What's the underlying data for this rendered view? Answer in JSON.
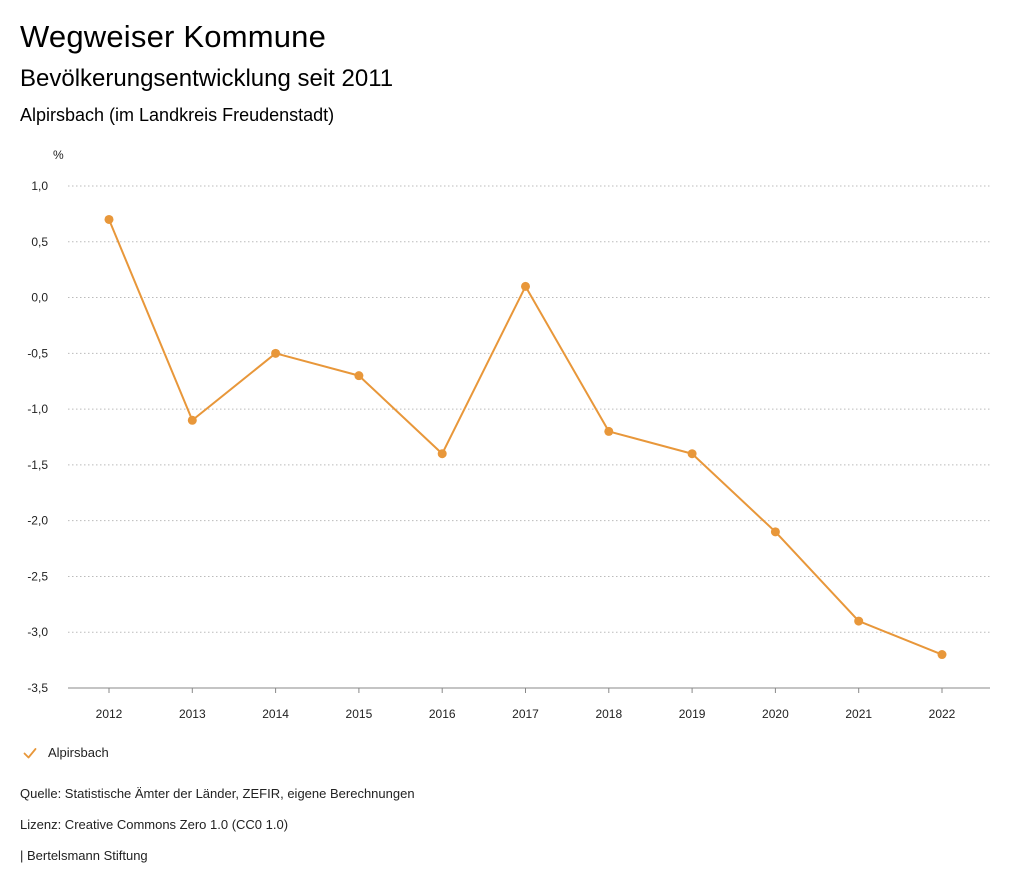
{
  "header": {
    "title": "Wegweiser Kommune",
    "subtitle": "Bevölkerungsentwicklung seit 2011",
    "location": "Alpirsbach (im Landkreis Freudenstadt)"
  },
  "chart_data": {
    "type": "line",
    "ylabel": "%",
    "xlabel": "",
    "x": [
      "2012",
      "2013",
      "2014",
      "2015",
      "2016",
      "2017",
      "2018",
      "2019",
      "2020",
      "2021",
      "2022"
    ],
    "series": [
      {
        "name": "Alpirsbach",
        "values": [
          0.7,
          -1.1,
          -0.5,
          -0.7,
          -1.4,
          0.1,
          -1.2,
          -1.4,
          -2.1,
          -2.9,
          -3.2
        ]
      }
    ],
    "ylim": [
      -3.5,
      1.0
    ],
    "yticks": [
      1.0,
      0.5,
      0.0,
      -0.5,
      -1.0,
      -1.5,
      -2.0,
      -2.5,
      -3.0,
      -3.5
    ],
    "ytick_labels": [
      "1,0",
      "0,5",
      "0,0",
      "-0,5",
      "-1,0",
      "-1,5",
      "-2,0",
      "-2,5",
      "-3,0",
      "-3,5"
    ],
    "grid": true,
    "grid_style": "dotted",
    "legend_position": "bottom-left",
    "line_color": "#E8973A",
    "grid_color": "#BBBBBB"
  },
  "footer": {
    "source": "Quelle: Statistische Ämter der Länder, ZEFIR, eigene Berechnungen",
    "license": "Lizenz: Creative Commons Zero 1.0 (CC0 1.0)",
    "publisher": "| Bertelsmann Stiftung"
  }
}
